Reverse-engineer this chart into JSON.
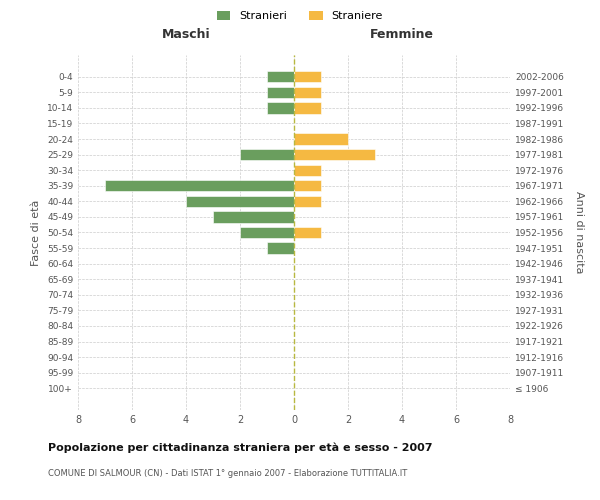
{
  "age_groups": [
    "0-4",
    "5-9",
    "10-14",
    "15-19",
    "20-24",
    "25-29",
    "30-34",
    "35-39",
    "40-44",
    "45-49",
    "50-54",
    "55-59",
    "60-64",
    "65-69",
    "70-74",
    "75-79",
    "80-84",
    "85-89",
    "90-94",
    "95-99",
    "100+"
  ],
  "birth_years": [
    "2002-2006",
    "1997-2001",
    "1992-1996",
    "1987-1991",
    "1982-1986",
    "1977-1981",
    "1972-1976",
    "1967-1971",
    "1962-1966",
    "1957-1961",
    "1952-1956",
    "1947-1951",
    "1942-1946",
    "1937-1941",
    "1932-1936",
    "1927-1931",
    "1922-1926",
    "1917-1921",
    "1912-1916",
    "1907-1911",
    "≤ 1906"
  ],
  "maschi": [
    1,
    1,
    1,
    0,
    0,
    2,
    0,
    7,
    4,
    3,
    2,
    1,
    0,
    0,
    0,
    0,
    0,
    0,
    0,
    0,
    0
  ],
  "femmine": [
    1,
    1,
    1,
    0,
    2,
    3,
    1,
    1,
    1,
    0,
    1,
    0,
    0,
    0,
    0,
    0,
    0,
    0,
    0,
    0,
    0
  ],
  "color_maschi": "#6a9e5e",
  "color_femmine": "#f5b942",
  "title": "Popolazione per cittadinanza straniera per età e sesso - 2007",
  "subtitle": "COMUNE DI SALMOUR (CN) - Dati ISTAT 1° gennaio 2007 - Elaborazione TUTTITALIA.IT",
  "xlabel_left": "Maschi",
  "xlabel_right": "Femmine",
  "ylabel_left": "Fasce di età",
  "ylabel_right": "Anni di nascita",
  "legend_maschi": "Stranieri",
  "legend_femmine": "Straniere",
  "xlim": 8,
  "background_color": "#ffffff",
  "grid_color": "#cccccc",
  "center_line_color": "#b8b840"
}
